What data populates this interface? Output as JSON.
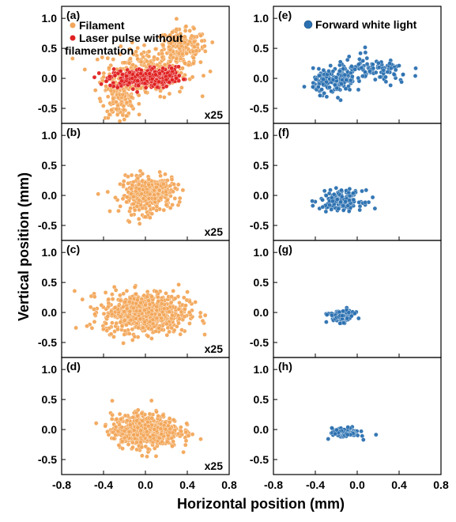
{
  "chart_data": {
    "type": "scatter",
    "xlabel": "Horizontal position (mm)",
    "ylabel": "Vertical position (mm)",
    "xlim": [
      -0.8,
      0.8
    ],
    "ylim": [
      -0.75,
      1.2
    ],
    "x_ticks": [
      "-0.8",
      "-0.4",
      "0.0",
      "0.4",
      "0.8"
    ],
    "y_ticks": [
      "1.0",
      "0.5",
      "0.0",
      "-0.5"
    ],
    "colors": {
      "filament": "#f2a65a",
      "laser": "#e02020",
      "white_light": "#2a70b0"
    },
    "legend": {
      "panel_a": [
        "Filament",
        "Laser pulse without filamentation"
      ],
      "panel_e": [
        "Forward white light"
      ]
    },
    "panels": [
      {
        "label": "(a)",
        "scale": "x25",
        "col": 0,
        "row": 0,
        "series": [
          {
            "name": "Filament",
            "color": "#f2a65a",
            "clusters": [
              {
                "cx": 0.0,
                "cy": 0.1,
                "sx": 0.2,
                "sy": 0.2,
                "n": 260
              },
              {
                "cx": 0.35,
                "cy": 0.5,
                "sx": 0.12,
                "sy": 0.15,
                "n": 200
              },
              {
                "cx": -0.25,
                "cy": -0.35,
                "sx": 0.08,
                "sy": 0.15,
                "n": 130
              }
            ]
          },
          {
            "name": "Laser pulse without filamentation",
            "color": "#e02020",
            "clusters": [
              {
                "cx": -0.05,
                "cy": 0.0,
                "sx": 0.15,
                "sy": 0.08,
                "n": 240
              },
              {
                "cx": 0.15,
                "cy": 0.05,
                "sx": 0.1,
                "sy": 0.07,
                "n": 130
              }
            ]
          }
        ]
      },
      {
        "label": "(b)",
        "scale": "x25",
        "col": 0,
        "row": 1,
        "series": [
          {
            "color": "#f2a65a",
            "clusters": [
              {
                "cx": 0.0,
                "cy": 0.0,
                "sx": 0.12,
                "sy": 0.15,
                "n": 300
              },
              {
                "cx": 0.12,
                "cy": 0.12,
                "sx": 0.08,
                "sy": 0.08,
                "n": 110
              }
            ]
          }
        ]
      },
      {
        "label": "(c)",
        "scale": "x25",
        "col": 0,
        "row": 2,
        "series": [
          {
            "color": "#f2a65a",
            "clusters": [
              {
                "cx": 0.0,
                "cy": 0.0,
                "sx": 0.2,
                "sy": 0.17,
                "n": 700
              }
            ]
          }
        ]
      },
      {
        "label": "(d)",
        "scale": "x25",
        "col": 0,
        "row": 3,
        "series": [
          {
            "color": "#f2a65a",
            "clusters": [
              {
                "cx": 0.0,
                "cy": -0.02,
                "sx": 0.16,
                "sy": 0.14,
                "n": 600
              }
            ]
          }
        ]
      },
      {
        "label": "(e)",
        "scale": "",
        "col": 1,
        "row": 0,
        "series": [
          {
            "name": "Forward white light",
            "color": "#2a70b0",
            "clusters": [
              {
                "cx": -0.22,
                "cy": -0.05,
                "sx": 0.1,
                "sy": 0.1,
                "n": 160
              },
              {
                "cx": 0.15,
                "cy": 0.12,
                "sx": 0.18,
                "sy": 0.12,
                "n": 110
              }
            ]
          }
        ]
      },
      {
        "label": "(f)",
        "scale": "",
        "col": 1,
        "row": 1,
        "series": [
          {
            "color": "#2a70b0",
            "clusters": [
              {
                "cx": -0.15,
                "cy": -0.08,
                "sx": 0.1,
                "sy": 0.08,
                "n": 170
              }
            ]
          }
        ]
      },
      {
        "label": "(g)",
        "scale": "",
        "col": 1,
        "row": 2,
        "series": [
          {
            "color": "#2a70b0",
            "clusters": [
              {
                "cx": -0.15,
                "cy": -0.06,
                "sx": 0.06,
                "sy": 0.05,
                "n": 110
              }
            ]
          }
        ]
      },
      {
        "label": "(h)",
        "scale": "",
        "col": 1,
        "row": 3,
        "series": [
          {
            "color": "#2a70b0",
            "clusters": [
              {
                "cx": -0.12,
                "cy": -0.05,
                "sx": 0.07,
                "sy": 0.04,
                "n": 100
              }
            ]
          }
        ]
      }
    ]
  }
}
